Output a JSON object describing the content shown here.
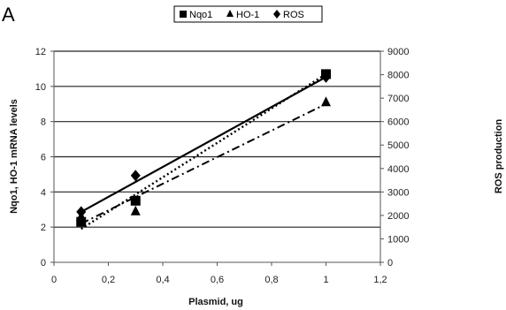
{
  "chart_data": {
    "type": "scatter",
    "panel_label": "A",
    "xlabel": "Plasmid, ug",
    "ylabel_left": "Nqo1, HO-1 mRNA levels",
    "ylabel_right": "ROS production",
    "xlim": [
      0,
      1.2
    ],
    "ylim_left": [
      0,
      12
    ],
    "ylim_right": [
      0,
      9000
    ],
    "x_ticks": [
      "0",
      "0,2",
      "0,4",
      "0,6",
      "0,8",
      "1",
      "1,2"
    ],
    "y_left_ticks": [
      "0",
      "2",
      "4",
      "6",
      "8",
      "10",
      "12"
    ],
    "y_right_ticks": [
      "0",
      "1000",
      "2000",
      "3000",
      "4000",
      "5000",
      "6000",
      "7000",
      "8000",
      "9000"
    ],
    "grid": "horizontal",
    "legend_position": "top",
    "series": [
      {
        "name": "Nqo1",
        "marker": "square",
        "axis": "left",
        "line_style": "dotted",
        "x": [
          0.1,
          0.3,
          1.0
        ],
        "y": [
          2.3,
          3.5,
          10.7
        ],
        "trend": [
          [
            0.1,
            1.9
          ],
          [
            1.0,
            10.7
          ]
        ]
      },
      {
        "name": "HO-1",
        "marker": "triangle",
        "axis": "left",
        "line_style": "dash-dot",
        "x": [
          0.1,
          0.3,
          1.0
        ],
        "y": [
          2.6,
          2.9,
          9.1
        ],
        "trend": [
          [
            0.1,
            2.2
          ],
          [
            1.0,
            9.0
          ]
        ]
      },
      {
        "name": "ROS",
        "marker": "diamond",
        "axis": "right",
        "line_style": "solid",
        "x": [
          0.1,
          0.3,
          1.0
        ],
        "y": [
          2150,
          3700,
          7900
        ],
        "trend": [
          [
            0.1,
            2150
          ],
          [
            1.0,
            7900
          ]
        ]
      }
    ]
  }
}
